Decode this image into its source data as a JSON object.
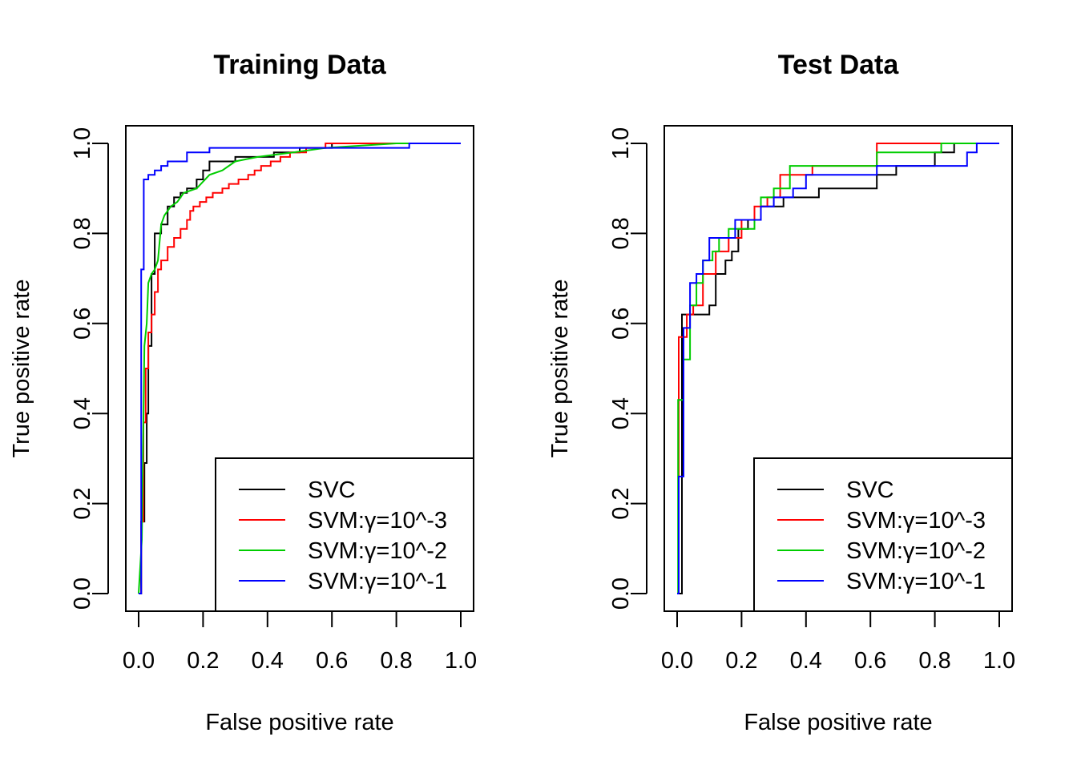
{
  "chart_data": [
    {
      "type": "line",
      "title": "Training Data",
      "xlabel": "False positive rate",
      "ylabel": "True positive rate",
      "xlim": [
        0,
        1
      ],
      "ylim": [
        0,
        1
      ],
      "xticks": [
        "0.0",
        "0.2",
        "0.4",
        "0.6",
        "0.8",
        "1.0"
      ],
      "yticks": [
        "0.0",
        "0.2",
        "0.4",
        "0.6",
        "0.8",
        "1.0"
      ],
      "legend_position": "bottom-right",
      "series": [
        {
          "name": "SVC",
          "color": "#000000",
          "x": [
            0,
            0.008,
            0.008,
            0.018,
            0.018,
            0.025,
            0.025,
            0.03,
            0.03,
            0.04,
            0.04,
            0.05,
            0.05,
            0.07,
            0.07,
            0.09,
            0.09,
            0.11,
            0.11,
            0.13,
            0.13,
            0.15,
            0.15,
            0.18,
            0.18,
            0.2,
            0.2,
            0.22,
            0.22,
            0.3,
            0.3,
            0.42,
            0.42,
            0.5,
            0.5,
            0.6,
            0.6,
            0.78,
            0.78,
            1.0
          ],
          "y": [
            0,
            0,
            0.16,
            0.16,
            0.29,
            0.29,
            0.4,
            0.4,
            0.55,
            0.55,
            0.71,
            0.71,
            0.8,
            0.8,
            0.82,
            0.82,
            0.86,
            0.86,
            0.88,
            0.88,
            0.89,
            0.89,
            0.9,
            0.9,
            0.92,
            0.92,
            0.94,
            0.94,
            0.96,
            0.96,
            0.97,
            0.97,
            0.98,
            0.98,
            0.99,
            0.99,
            1.0,
            1.0,
            1.0,
            1.0
          ]
        },
        {
          "name": "SVM:γ=10^-3",
          "color": "#ff0000",
          "x": [
            0,
            0.008,
            0.008,
            0.015,
            0.015,
            0.022,
            0.022,
            0.03,
            0.03,
            0.04,
            0.04,
            0.05,
            0.05,
            0.06,
            0.06,
            0.07,
            0.07,
            0.09,
            0.09,
            0.11,
            0.11,
            0.13,
            0.13,
            0.15,
            0.15,
            0.16,
            0.16,
            0.17,
            0.17,
            0.19,
            0.19,
            0.21,
            0.21,
            0.23,
            0.23,
            0.26,
            0.26,
            0.28,
            0.28,
            0.31,
            0.31,
            0.34,
            0.34,
            0.36,
            0.36,
            0.38,
            0.38,
            0.41,
            0.41,
            0.44,
            0.44,
            0.47,
            0.47,
            0.49,
            0.49,
            0.52,
            0.52,
            0.55,
            0.55,
            0.58,
            0.58,
            0.77,
            0.77,
            1.0
          ],
          "y": [
            0,
            0,
            0.16,
            0.16,
            0.38,
            0.38,
            0.5,
            0.5,
            0.58,
            0.58,
            0.62,
            0.62,
            0.67,
            0.67,
            0.72,
            0.72,
            0.74,
            0.74,
            0.77,
            0.77,
            0.79,
            0.79,
            0.81,
            0.81,
            0.83,
            0.83,
            0.85,
            0.85,
            0.86,
            0.86,
            0.87,
            0.87,
            0.88,
            0.88,
            0.89,
            0.89,
            0.9,
            0.9,
            0.91,
            0.91,
            0.92,
            0.92,
            0.93,
            0.93,
            0.94,
            0.94,
            0.95,
            0.95,
            0.96,
            0.96,
            0.97,
            0.97,
            0.98,
            0.98,
            0.98,
            0.98,
            0.99,
            0.99,
            0.99,
            0.99,
            1.0,
            1.0,
            1.0,
            1.0
          ]
        },
        {
          "name": "SVM:γ=10^-2",
          "color": "#00cd00",
          "x": [
            0,
            0.01,
            0.01,
            0.018,
            0.018,
            0.025,
            0.025,
            0.03,
            0.03,
            0.04,
            0.04,
            0.05,
            0.05,
            0.06,
            0.06,
            0.07,
            0.07,
            0.08,
            0.08,
            0.1,
            0.1,
            0.12,
            0.12,
            0.14,
            0.14,
            0.18,
            0.18,
            0.22,
            0.22,
            0.26,
            0.26,
            0.3,
            0.3,
            0.37,
            0.37,
            0.48,
            0.48,
            0.58,
            0.58,
            0.8,
            0.8,
            1.0
          ],
          "y": [
            0,
            0.12,
            0.12,
            0.55,
            0.55,
            0.6,
            0.6,
            0.69,
            0.69,
            0.71,
            0.71,
            0.72,
            0.72,
            0.74,
            0.74,
            0.82,
            0.82,
            0.84,
            0.84,
            0.86,
            0.86,
            0.87,
            0.87,
            0.89,
            0.89,
            0.9,
            0.9,
            0.93,
            0.93,
            0.94,
            0.94,
            0.96,
            0.96,
            0.97,
            0.97,
            0.98,
            0.98,
            0.99,
            0.99,
            1.0,
            1.0,
            1.0
          ]
        },
        {
          "name": "SVM:γ=10^-1",
          "color": "#0000ff",
          "x": [
            0,
            0.008,
            0.008,
            0.016,
            0.016,
            0.03,
            0.03,
            0.05,
            0.05,
            0.07,
            0.07,
            0.09,
            0.09,
            0.15,
            0.15,
            0.22,
            0.22,
            0.84,
            0.84,
            1.0
          ],
          "y": [
            0,
            0,
            0.72,
            0.72,
            0.92,
            0.92,
            0.93,
            0.93,
            0.94,
            0.94,
            0.95,
            0.95,
            0.96,
            0.96,
            0.98,
            0.98,
            0.99,
            0.99,
            1.0,
            1.0
          ]
        }
      ]
    },
    {
      "type": "line",
      "title": "Test Data",
      "xlabel": "False positive rate",
      "ylabel": "True positive rate",
      "xlim": [
        0,
        1
      ],
      "ylim": [
        0,
        1
      ],
      "xticks": [
        "0.0",
        "0.2",
        "0.4",
        "0.6",
        "0.8",
        "1.0"
      ],
      "yticks": [
        "0.0",
        "0.2",
        "0.4",
        "0.6",
        "0.8",
        "1.0"
      ],
      "legend_position": "bottom-right",
      "series": [
        {
          "name": "SVC",
          "color": "#000000",
          "x": [
            0,
            0.015,
            0.015,
            0.1,
            0.1,
            0.12,
            0.12,
            0.15,
            0.15,
            0.17,
            0.17,
            0.19,
            0.19,
            0.22,
            0.22,
            0.26,
            0.26,
            0.33,
            0.33,
            0.44,
            0.44,
            0.62,
            0.62,
            0.68,
            0.68,
            0.8,
            0.8,
            0.86,
            0.86,
            0.91,
            0.91,
            0.95,
            0.95,
            1.0
          ],
          "y": [
            0,
            0,
            0.62,
            0.62,
            0.64,
            0.64,
            0.71,
            0.71,
            0.74,
            0.74,
            0.76,
            0.76,
            0.81,
            0.81,
            0.83,
            0.83,
            0.86,
            0.86,
            0.88,
            0.88,
            0.9,
            0.9,
            0.93,
            0.93,
            0.95,
            0.95,
            0.98,
            0.98,
            1.0,
            1.0,
            1.0,
            1.0,
            1.0,
            1.0
          ]
        },
        {
          "name": "SVM:γ=10^-3",
          "color": "#ff0000",
          "x": [
            0,
            0.005,
            0.005,
            0.03,
            0.03,
            0.05,
            0.05,
            0.08,
            0.08,
            0.12,
            0.12,
            0.16,
            0.16,
            0.2,
            0.2,
            0.24,
            0.24,
            0.28,
            0.28,
            0.32,
            0.32,
            0.42,
            0.42,
            0.62,
            0.62,
            1.0
          ],
          "y": [
            0,
            0,
            0.57,
            0.57,
            0.62,
            0.62,
            0.64,
            0.64,
            0.71,
            0.71,
            0.76,
            0.76,
            0.79,
            0.79,
            0.83,
            0.83,
            0.86,
            0.86,
            0.88,
            0.88,
            0.93,
            0.93,
            0.95,
            0.95,
            1.0,
            1.0
          ]
        },
        {
          "name": "SVM:γ=10^-2",
          "color": "#00cd00",
          "x": [
            0,
            0.003,
            0.003,
            0.02,
            0.02,
            0.04,
            0.04,
            0.06,
            0.06,
            0.08,
            0.08,
            0.11,
            0.11,
            0.13,
            0.13,
            0.16,
            0.16,
            0.24,
            0.24,
            0.26,
            0.26,
            0.3,
            0.3,
            0.35,
            0.35,
            0.4,
            0.4,
            0.62,
            0.62,
            0.82,
            0.82,
            1.0
          ],
          "y": [
            0,
            0,
            0.43,
            0.43,
            0.52,
            0.52,
            0.64,
            0.64,
            0.69,
            0.69,
            0.74,
            0.74,
            0.76,
            0.76,
            0.79,
            0.79,
            0.81,
            0.81,
            0.83,
            0.83,
            0.88,
            0.88,
            0.9,
            0.9,
            0.95,
            0.95,
            0.95,
            0.95,
            0.98,
            0.98,
            1.0,
            1.0
          ]
        },
        {
          "name": "SVM:γ=10^-1",
          "color": "#0000ff",
          "x": [
            0,
            0.005,
            0.005,
            0.02,
            0.02,
            0.04,
            0.04,
            0.06,
            0.06,
            0.08,
            0.08,
            0.1,
            0.1,
            0.18,
            0.18,
            0.26,
            0.26,
            0.3,
            0.3,
            0.36,
            0.36,
            0.4,
            0.4,
            0.62,
            0.62,
            0.9,
            0.9,
            0.93,
            0.93,
            1.0
          ],
          "y": [
            0,
            0,
            0.26,
            0.26,
            0.59,
            0.59,
            0.69,
            0.69,
            0.71,
            0.71,
            0.74,
            0.74,
            0.79,
            0.79,
            0.83,
            0.83,
            0.86,
            0.86,
            0.88,
            0.88,
            0.9,
            0.9,
            0.93,
            0.93,
            0.95,
            0.95,
            0.98,
            0.98,
            1.0,
            1.0
          ]
        }
      ]
    }
  ]
}
